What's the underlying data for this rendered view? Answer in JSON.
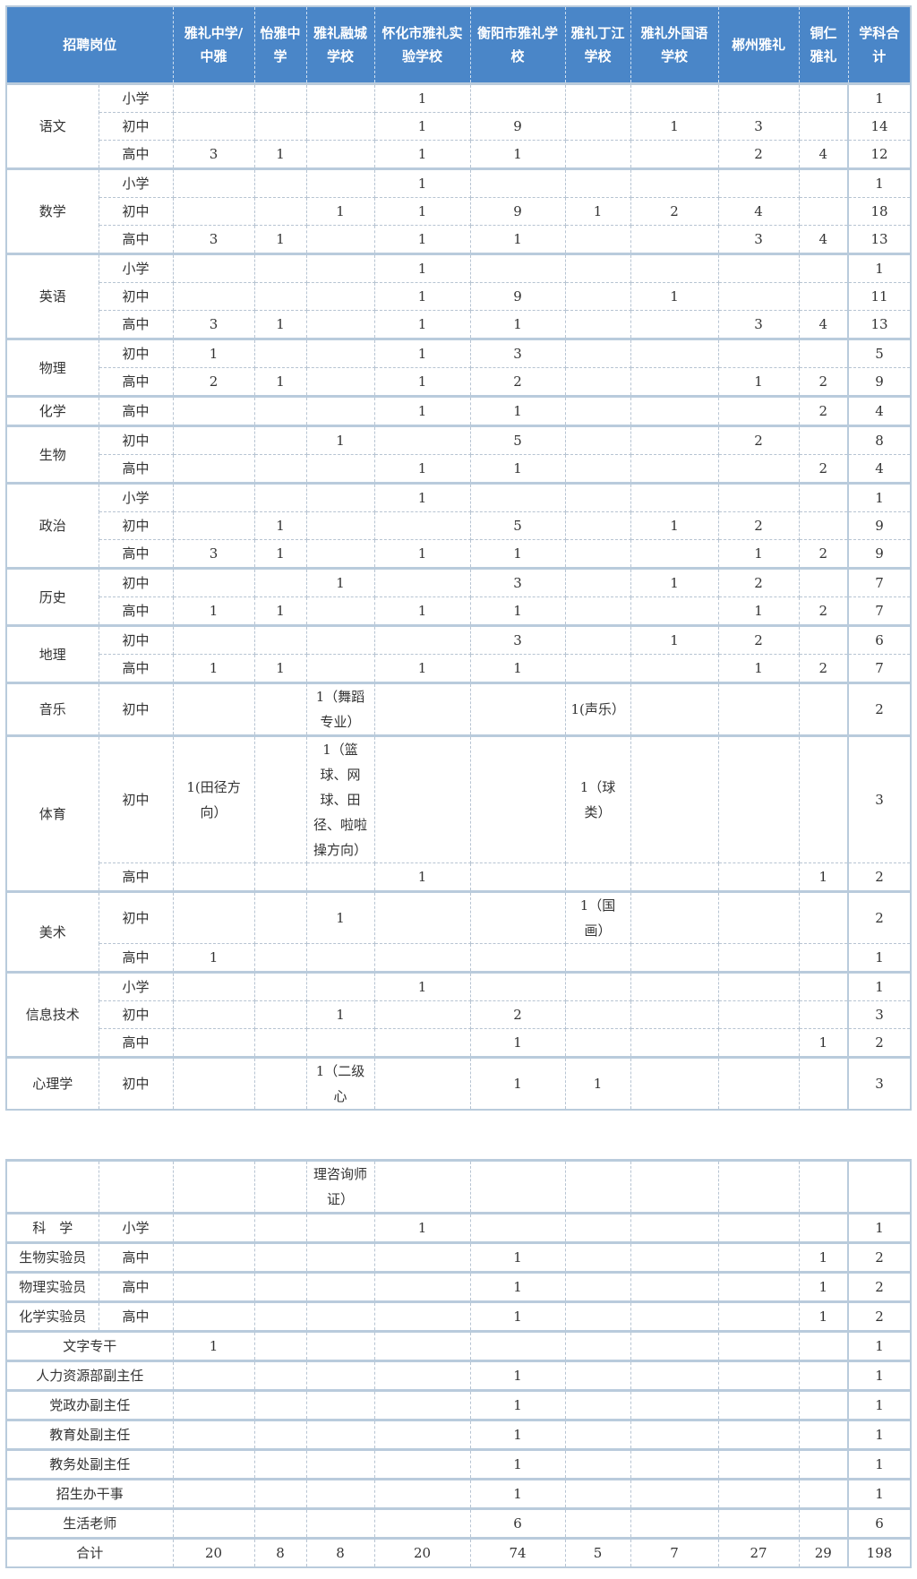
{
  "header": {
    "position": "招聘岗位",
    "schools": [
      "雅礼中学/中雅",
      "怡雅中学",
      "雅礼融城学校",
      "怀化市雅礼实验学校",
      "衡阳市雅礼学校",
      "雅礼丁江学校",
      "雅礼外国语学校",
      "郴州雅礼",
      "铜仁雅礼"
    ],
    "total": "学科合计"
  },
  "colors": {
    "header_bg": "#4a86c8",
    "header_text": "#ffffff",
    "border": "#b9cbdc"
  },
  "table1": [
    {
      "subject": "语文",
      "rows": [
        {
          "level": "小学",
          "cells": [
            "",
            "",
            "",
            "1",
            "",
            "",
            "",
            "",
            ""
          ],
          "total": "1"
        },
        {
          "level": "初中",
          "cells": [
            "",
            "",
            "",
            "1",
            "9",
            "",
            "1",
            "3",
            ""
          ],
          "total": "14"
        },
        {
          "level": "高中",
          "cells": [
            "3",
            "1",
            "",
            "1",
            "1",
            "",
            "",
            "2",
            "4"
          ],
          "total": "12"
        }
      ]
    },
    {
      "subject": "数学",
      "rows": [
        {
          "level": "小学",
          "cells": [
            "",
            "",
            "",
            "1",
            "",
            "",
            "",
            "",
            ""
          ],
          "total": "1"
        },
        {
          "level": "初中",
          "cells": [
            "",
            "",
            "1",
            "1",
            "9",
            "1",
            "2",
            "4",
            ""
          ],
          "total": "18"
        },
        {
          "level": "高中",
          "cells": [
            "3",
            "1",
            "",
            "1",
            "1",
            "",
            "",
            "3",
            "4"
          ],
          "total": "13"
        }
      ]
    },
    {
      "subject": "英语",
      "rows": [
        {
          "level": "小学",
          "cells": [
            "",
            "",
            "",
            "1",
            "",
            "",
            "",
            "",
            ""
          ],
          "total": "1"
        },
        {
          "level": "初中",
          "cells": [
            "",
            "",
            "",
            "1",
            "9",
            "",
            "1",
            "",
            ""
          ],
          "total": "11"
        },
        {
          "level": "高中",
          "cells": [
            "3",
            "1",
            "",
            "1",
            "1",
            "",
            "",
            "3",
            "4"
          ],
          "total": "13"
        }
      ]
    },
    {
      "subject": "物理",
      "rows": [
        {
          "level": "初中",
          "cells": [
            "1",
            "",
            "",
            "1",
            "3",
            "",
            "",
            "",
            ""
          ],
          "total": "5"
        },
        {
          "level": "高中",
          "cells": [
            "2",
            "1",
            "",
            "1",
            "2",
            "",
            "",
            "1",
            "2"
          ],
          "total": "9"
        }
      ]
    },
    {
      "subject": "化学",
      "rows": [
        {
          "level": "高中",
          "cells": [
            "",
            "",
            "",
            "1",
            "1",
            "",
            "",
            "",
            "2"
          ],
          "total": "4"
        }
      ]
    },
    {
      "subject": "生物",
      "rows": [
        {
          "level": "初中",
          "cells": [
            "",
            "",
            "1",
            "",
            "5",
            "",
            "",
            "2",
            ""
          ],
          "total": "8"
        },
        {
          "level": "高中",
          "cells": [
            "",
            "",
            "",
            "1",
            "1",
            "",
            "",
            "",
            "2"
          ],
          "total": "4"
        }
      ]
    },
    {
      "subject": "政治",
      "rows": [
        {
          "level": "小学",
          "cells": [
            "",
            "",
            "",
            "1",
            "",
            "",
            "",
            "",
            ""
          ],
          "total": "1"
        },
        {
          "level": "初中",
          "cells": [
            "",
            "1",
            "",
            "",
            "5",
            "",
            "1",
            "2",
            ""
          ],
          "total": "9"
        },
        {
          "level": "高中",
          "cells": [
            "3",
            "1",
            "",
            "1",
            "1",
            "",
            "",
            "1",
            "2"
          ],
          "total": "9"
        }
      ]
    },
    {
      "subject": "历史",
      "rows": [
        {
          "level": "初中",
          "cells": [
            "",
            "",
            "1",
            "",
            "3",
            "",
            "1",
            "2",
            ""
          ],
          "total": "7"
        },
        {
          "level": "高中",
          "cells": [
            "1",
            "1",
            "",
            "1",
            "1",
            "",
            "",
            "1",
            "2"
          ],
          "total": "7"
        }
      ]
    },
    {
      "subject": "地理",
      "rows": [
        {
          "level": "初中",
          "cells": [
            "",
            "",
            "",
            "",
            "3",
            "",
            "1",
            "2",
            ""
          ],
          "total": "6"
        },
        {
          "level": "高中",
          "cells": [
            "1",
            "1",
            "",
            "1",
            "1",
            "",
            "",
            "1",
            "2"
          ],
          "total": "7"
        }
      ]
    },
    {
      "subject": "音乐",
      "rows": [
        {
          "level": "初中",
          "cells": [
            "",
            "",
            "1（舞蹈专业）",
            "",
            "",
            "1(声乐）",
            "",
            "",
            ""
          ],
          "total": "2"
        }
      ]
    },
    {
      "subject": "体育",
      "rows": [
        {
          "level": "初中",
          "cells": [
            "1(田径方向）",
            "",
            "1（篮球、网球、田径、啦啦操方向）",
            "",
            "",
            "1（球类）",
            "",
            "",
            ""
          ],
          "total": "3"
        },
        {
          "level": "高中",
          "cells": [
            "",
            "",
            "",
            "1",
            "",
            "",
            "",
            "",
            "1"
          ],
          "total": "2"
        }
      ]
    },
    {
      "subject": "美术",
      "rows": [
        {
          "level": "初中",
          "cells": [
            "",
            "",
            "1",
            "",
            "",
            "1（国画）",
            "",
            "",
            ""
          ],
          "total": "2"
        },
        {
          "level": "高中",
          "cells": [
            "1",
            "",
            "",
            "",
            "",
            "",
            "",
            "",
            ""
          ],
          "total": "1"
        }
      ]
    },
    {
      "subject": "信息技术",
      "rows": [
        {
          "level": "小学",
          "cells": [
            "",
            "",
            "",
            "1",
            "",
            "",
            "",
            "",
            ""
          ],
          "total": "1"
        },
        {
          "level": "初中",
          "cells": [
            "",
            "",
            "1",
            "",
            "2",
            "",
            "",
            "",
            ""
          ],
          "total": "3"
        },
        {
          "level": "高中",
          "cells": [
            "",
            "",
            "",
            "",
            "1",
            "",
            "",
            "",
            "1"
          ],
          "total": "2"
        }
      ]
    },
    {
      "subject": "心理学",
      "rows": [
        {
          "level": "初中",
          "cells": [
            "",
            "",
            "1（二级心",
            "",
            "1",
            "1",
            "",
            "",
            ""
          ],
          "total": "3"
        }
      ]
    }
  ],
  "table2": [
    {
      "subject": "",
      "rows": [
        {
          "level": "",
          "cells": [
            "",
            "",
            "理咨询师证）",
            "",
            "",
            "",
            "",
            "",
            ""
          ],
          "total": ""
        }
      ]
    },
    {
      "subject": "科　学",
      "rows": [
        {
          "level": "小学",
          "cells": [
            "",
            "",
            "",
            "1",
            "",
            "",
            "",
            "",
            ""
          ],
          "total": "1"
        }
      ]
    },
    {
      "subject": "生物实验员",
      "rows": [
        {
          "level": "高中",
          "cells": [
            "",
            "",
            "",
            "",
            "1",
            "",
            "",
            "",
            "1"
          ],
          "total": "2"
        }
      ]
    },
    {
      "subject": "物理实验员",
      "rows": [
        {
          "level": "高中",
          "cells": [
            "",
            "",
            "",
            "",
            "1",
            "",
            "",
            "",
            "1"
          ],
          "total": "2"
        }
      ]
    },
    {
      "subject": "化学实验员",
      "rows": [
        {
          "level": "高中",
          "cells": [
            "",
            "",
            "",
            "",
            "1",
            "",
            "",
            "",
            "1"
          ],
          "total": "2"
        }
      ]
    },
    {
      "position": "文字专干",
      "cells": [
        "1",
        "",
        "",
        "",
        "",
        "",
        "",
        "",
        ""
      ],
      "total": "1"
    },
    {
      "position": "人力资源部副主任",
      "cells": [
        "",
        "",
        "",
        "",
        "1",
        "",
        "",
        "",
        ""
      ],
      "total": "1"
    },
    {
      "position": "党政办副主任",
      "cells": [
        "",
        "",
        "",
        "",
        "1",
        "",
        "",
        "",
        ""
      ],
      "total": "1"
    },
    {
      "position": "教育处副主任",
      "cells": [
        "",
        "",
        "",
        "",
        "1",
        "",
        "",
        "",
        ""
      ],
      "total": "1"
    },
    {
      "position": "教务处副主任",
      "cells": [
        "",
        "",
        "",
        "",
        "1",
        "",
        "",
        "",
        ""
      ],
      "total": "1"
    },
    {
      "position": "招生办干事",
      "cells": [
        "",
        "",
        "",
        "",
        "1",
        "",
        "",
        "",
        ""
      ],
      "total": "1"
    },
    {
      "position": "生活老师",
      "cells": [
        "",
        "",
        "",
        "",
        "6",
        "",
        "",
        "",
        ""
      ],
      "total": "6"
    },
    {
      "position": "合计",
      "cells": [
        "20",
        "8",
        "8",
        "20",
        "74",
        "5",
        "7",
        "27",
        "29"
      ],
      "total": "198"
    }
  ]
}
